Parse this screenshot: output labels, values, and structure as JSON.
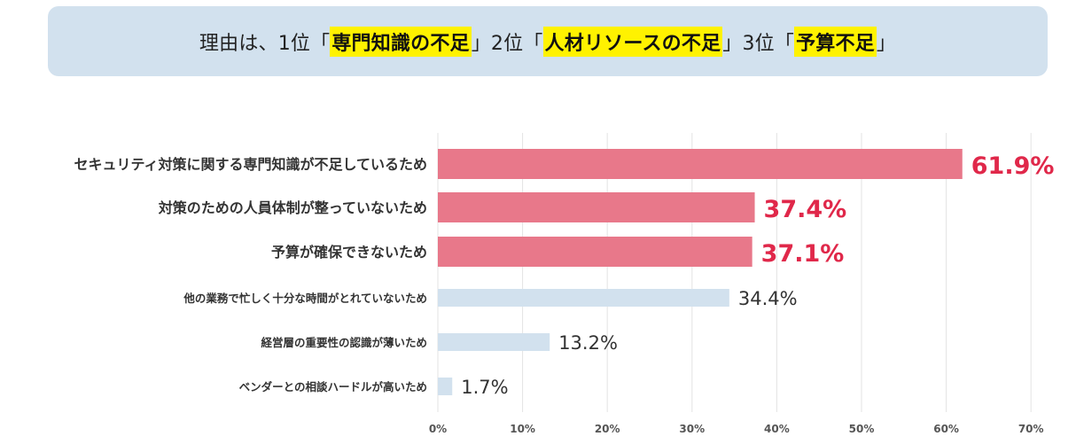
{
  "banner": {
    "p1": "理由は、1位「",
    "h1": "専門知識の不足",
    "p2": "」2位「",
    "h2": "人材リソースの不足",
    "p3": "」3位「",
    "h3": "予算不足",
    "p4": "」"
  },
  "colors": {
    "highlight_bar": "#e8788a",
    "highlight_text": "#e0284a",
    "other_bar": "#d2e1ee",
    "other_text": "#333333",
    "banner_bg": "#d2e1ee",
    "marker": "#fff200"
  },
  "chart_data": {
    "type": "bar",
    "orientation": "horizontal",
    "categories": [
      "セキュリティ対策に関する専門知識が不足しているため",
      "対策のための人員体制が整っていないため",
      "予算が確保できないため",
      "他の業務で忙しく十分な時間がとれていないため",
      "経営層の重要性の認識が薄いため",
      "ベンダーとの相談ハードルが高いため"
    ],
    "values": [
      61.9,
      37.4,
      37.1,
      34.4,
      13.2,
      1.7
    ],
    "value_labels": [
      "61.9%",
      "37.4%",
      "37.1%",
      "34.4%",
      "13.2%",
      "1.7%"
    ],
    "highlighted": [
      true,
      true,
      true,
      false,
      false,
      false
    ],
    "xlim": [
      0,
      70
    ],
    "xticks": [
      "0%",
      "10%",
      "20%",
      "30%",
      "40%",
      "50%",
      "60%",
      "70%"
    ],
    "grid": true
  }
}
